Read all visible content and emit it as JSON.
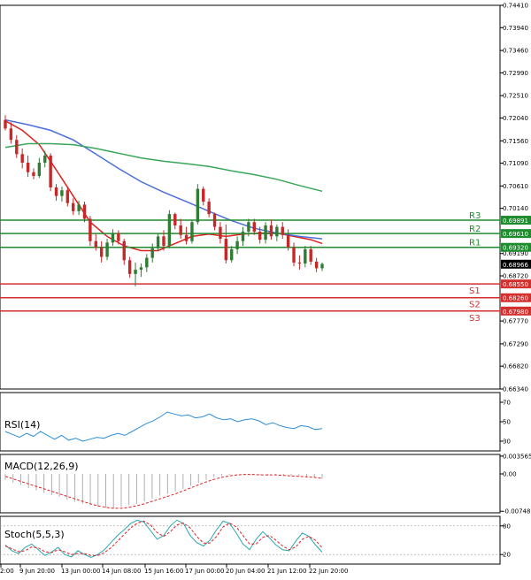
{
  "colors": {
    "background": "#ffffff",
    "frame": "#000000",
    "bull_candle": "#2e7d32",
    "bear_candle": "#c62828",
    "resistance": "#1e8c2e",
    "support": "#d32f2f",
    "ema_fast": "#e02020",
    "ma_mid": "#4a6fdc",
    "ma_slow": "#3aa65a",
    "current_price": "#000000",
    "rsi": "#2c8fd8",
    "macd_hist": "#b0b0b0",
    "macd_signal": "#e02020",
    "stoch_main": "#2aa8b0",
    "stoch_signal": "#e02020"
  },
  "chart_data": [
    {
      "type": "candlestick",
      "title": "",
      "y_range": [
        0.6634,
        0.7441
      ],
      "price_ticks": [
        "0.74410",
        "0.73940",
        "0.73460",
        "0.72990",
        "0.72510",
        "0.72040",
        "0.71560",
        "0.71090",
        "0.70610",
        "0.70140",
        "0.69190",
        "0.68720",
        "0.67770",
        "0.67290",
        "0.66820",
        "0.66340"
      ],
      "time_labels": [
        "2:00",
        "9 Jun 20:00",
        "13 Jun 00:00",
        "14 Jun 08:00",
        "15 Jun 16:00",
        "17 Jun 00:00",
        "20 Jun 04:00",
        "21 Jun 12:00",
        "22 Jun 20:00"
      ],
      "current_price": "0.68966",
      "levels": [
        {
          "name": "R3",
          "value": "0.69891",
          "kind": "resistance"
        },
        {
          "name": "R2",
          "value": "0.69610",
          "kind": "resistance"
        },
        {
          "name": "R1",
          "value": "0.69320",
          "kind": "resistance"
        },
        {
          "name": "S1",
          "value": "0.68550",
          "kind": "support"
        },
        {
          "name": "S2",
          "value": "0.68260",
          "kind": "support"
        },
        {
          "name": "S3",
          "value": "0.67980",
          "kind": "support"
        }
      ],
      "candles": [
        [
          0.72,
          0.721,
          0.7178,
          0.7182
        ],
        [
          0.7182,
          0.7195,
          0.715,
          0.7158
        ],
        [
          0.7158,
          0.7168,
          0.712,
          0.7128
        ],
        [
          0.7128,
          0.714,
          0.7098,
          0.711
        ],
        [
          0.711,
          0.7125,
          0.708,
          0.709
        ],
        [
          0.709,
          0.7098,
          0.7075,
          0.7082
        ],
        [
          0.7082,
          0.712,
          0.7078,
          0.711
        ],
        [
          0.711,
          0.7135,
          0.71,
          0.7125
        ],
        [
          0.7125,
          0.713,
          0.705,
          0.7058
        ],
        [
          0.7058,
          0.7065,
          0.703,
          0.704
        ],
        [
          0.704,
          0.706,
          0.7028,
          0.7052
        ],
        [
          0.7052,
          0.706,
          0.7018,
          0.7025
        ],
        [
          0.7025,
          0.7035,
          0.7,
          0.7008
        ],
        [
          0.7008,
          0.703,
          0.7,
          0.7022
        ],
        [
          0.7022,
          0.7028,
          0.6985,
          0.6992
        ],
        [
          0.6992,
          0.6998,
          0.6935,
          0.6945
        ],
        [
          0.6945,
          0.696,
          0.6925,
          0.6932
        ],
        [
          0.6932,
          0.6945,
          0.69,
          0.6912
        ],
        [
          0.6912,
          0.695,
          0.6905,
          0.6942
        ],
        [
          0.6942,
          0.697,
          0.6935,
          0.6962
        ],
        [
          0.6962,
          0.6968,
          0.6938,
          0.6945
        ],
        [
          0.6945,
          0.695,
          0.6895,
          0.6905
        ],
        [
          0.6905,
          0.6912,
          0.6868,
          0.6876
        ],
        [
          0.6876,
          0.69,
          0.685,
          0.6885
        ],
        [
          0.6885,
          0.6898,
          0.687,
          0.689
        ],
        [
          0.689,
          0.6918,
          0.688,
          0.691
        ],
        [
          0.691,
          0.694,
          0.69,
          0.693
        ],
        [
          0.693,
          0.6962,
          0.6925,
          0.6955
        ],
        [
          0.6955,
          0.6968,
          0.6925,
          0.6935
        ],
        [
          0.6935,
          0.701,
          0.693,
          0.7002
        ],
        [
          0.7002,
          0.7005,
          0.697,
          0.6978
        ],
        [
          0.6978,
          0.6992,
          0.695,
          0.6958
        ],
        [
          0.6958,
          0.6975,
          0.6938,
          0.6945
        ],
        [
          0.6945,
          0.699,
          0.694,
          0.6985
        ],
        [
          0.6985,
          0.7065,
          0.698,
          0.7055
        ],
        [
          0.7055,
          0.706,
          0.702,
          0.7028
        ],
        [
          0.7028,
          0.7035,
          0.6995,
          0.7002
        ],
        [
          0.7002,
          0.7005,
          0.6968,
          0.6975
        ],
        [
          0.6975,
          0.6985,
          0.694,
          0.695
        ],
        [
          0.695,
          0.698,
          0.6898,
          0.6905
        ],
        [
          0.6905,
          0.6935,
          0.69,
          0.6928
        ],
        [
          0.6928,
          0.6955,
          0.6918,
          0.6945
        ],
        [
          0.6945,
          0.6975,
          0.6935,
          0.6965
        ],
        [
          0.6965,
          0.6992,
          0.6955,
          0.6985
        ],
        [
          0.6985,
          0.6992,
          0.6958,
          0.6965
        ],
        [
          0.6965,
          0.6975,
          0.694,
          0.6948
        ],
        [
          0.6948,
          0.6985,
          0.694,
          0.6978
        ],
        [
          0.6978,
          0.699,
          0.6948,
          0.6955
        ],
        [
          0.6955,
          0.698,
          0.6945,
          0.6975
        ],
        [
          0.6975,
          0.6985,
          0.695,
          0.6958
        ],
        [
          0.6958,
          0.697,
          0.6925,
          0.6932
        ],
        [
          0.6932,
          0.6942,
          0.6892,
          0.69
        ],
        [
          0.69,
          0.6915,
          0.6885,
          0.6898
        ],
        [
          0.6898,
          0.6935,
          0.689,
          0.6928
        ],
        [
          0.6928,
          0.6935,
          0.6895,
          0.6902
        ],
        [
          0.6902,
          0.691,
          0.688,
          0.6888
        ],
        [
          0.6888,
          0.69,
          0.6882,
          0.6897
        ]
      ],
      "moving_averages": [
        {
          "points": [
            [
              0,
              0.7198
            ],
            [
              3,
              0.7178
            ],
            [
              6,
              0.7148
            ],
            [
              9,
              0.7095
            ],
            [
              12,
              0.704
            ],
            [
              15,
              0.6985
            ],
            [
              18,
              0.6955
            ],
            [
              21,
              0.6935
            ],
            [
              24,
              0.6925
            ],
            [
              27,
              0.6925
            ],
            [
              30,
              0.694
            ],
            [
              33,
              0.6955
            ],
            [
              36,
              0.696
            ],
            [
              39,
              0.6955
            ],
            [
              42,
              0.696
            ],
            [
              45,
              0.6962
            ],
            [
              48,
              0.6962
            ],
            [
              51,
              0.6955
            ],
            [
              54,
              0.6948
            ],
            [
              56,
              0.694
            ]
          ]
        },
        {
          "points": [
            [
              0,
              0.72
            ],
            [
              4,
              0.719
            ],
            [
              8,
              0.7178
            ],
            [
              12,
              0.7158
            ],
            [
              16,
              0.7128
            ],
            [
              20,
              0.7098
            ],
            [
              24,
              0.707
            ],
            [
              28,
              0.7048
            ],
            [
              32,
              0.7028
            ],
            [
              36,
              0.7008
            ],
            [
              40,
              0.6988
            ],
            [
              44,
              0.6972
            ],
            [
              48,
              0.6962
            ],
            [
              52,
              0.6955
            ],
            [
              56,
              0.695
            ]
          ]
        },
        {
          "points": [
            [
              0,
              0.7142
            ],
            [
              4,
              0.715
            ],
            [
              8,
              0.715
            ],
            [
              12,
              0.7148
            ],
            [
              16,
              0.714
            ],
            [
              20,
              0.713
            ],
            [
              24,
              0.712
            ],
            [
              28,
              0.7113
            ],
            [
              32,
              0.7108
            ],
            [
              36,
              0.7102
            ],
            [
              40,
              0.7093
            ],
            [
              44,
              0.7085
            ],
            [
              48,
              0.7075
            ],
            [
              52,
              0.7062
            ],
            [
              56,
              0.705
            ]
          ]
        }
      ]
    },
    {
      "type": "line",
      "title": "RSI(14)",
      "y_range": [
        20,
        80
      ],
      "ticks": [
        "70",
        "50",
        "30"
      ],
      "series": [
        {
          "values": [
            40,
            37,
            34,
            38,
            35,
            40,
            36,
            32,
            36,
            31,
            33,
            30,
            32,
            34,
            33,
            36,
            38,
            36,
            40,
            44,
            48,
            51,
            55,
            60,
            58,
            56,
            57,
            54,
            55,
            58,
            54,
            52,
            53,
            50,
            52,
            53,
            51,
            47,
            49,
            46,
            44,
            43,
            46,
            45,
            42,
            43
          ]
        }
      ]
    },
    {
      "type": "bar",
      "title": "MACD(12,26,9)",
      "y_range": [
        -0.0078,
        0.0039
      ],
      "ticks": [
        "0.003565",
        "0.00",
        "-0.007482"
      ],
      "series": [
        {
          "values": [
            -0.0012,
            -0.0018,
            -0.0022,
            -0.0028,
            -0.0033,
            -0.0038,
            -0.0042,
            -0.0046,
            -0.0052,
            -0.0056,
            -0.006,
            -0.0063,
            -0.0066,
            -0.0068,
            -0.0069,
            -0.0066,
            -0.0063,
            -0.006,
            -0.0055,
            -0.005,
            -0.0044,
            -0.004,
            -0.0035,
            -0.003,
            -0.0024,
            -0.0018,
            -0.0012,
            -0.0007,
            -0.0004,
            -0.0002,
            -0.0001,
            -0.0001,
            -0.0002,
            -0.0002,
            -0.0003,
            -0.0002,
            -0.0003,
            -0.0004,
            -0.0005,
            -0.0006,
            -0.0008,
            -0.001
          ]
        },
        {
          "values": [
            -0.0005,
            -0.001,
            -0.0015,
            -0.002,
            -0.0025,
            -0.003,
            -0.0035,
            -0.004,
            -0.0045,
            -0.005,
            -0.0055,
            -0.006,
            -0.0064,
            -0.0067,
            -0.0069,
            -0.0069,
            -0.0067,
            -0.0064,
            -0.006,
            -0.0055,
            -0.005,
            -0.0045,
            -0.004,
            -0.0034,
            -0.0028,
            -0.0022,
            -0.0016,
            -0.0011,
            -0.0007,
            -0.0004,
            -0.0002,
            -0.0001,
            -0.0001,
            -0.0002,
            -0.0002,
            -0.0002,
            -0.0003,
            -0.0004,
            -0.0005,
            -0.0006,
            -0.0007,
            -0.0009
          ]
        }
      ]
    },
    {
      "type": "line",
      "title": "Stoch(5,5,3)",
      "y_range": [
        0,
        100
      ],
      "ticks": [
        "80",
        "20"
      ],
      "series": [
        {
          "values": [
            40,
            28,
            22,
            35,
            42,
            30,
            18,
            25,
            35,
            20,
            15,
            28,
            20,
            14,
            20,
            30,
            45,
            60,
            72,
            85,
            92,
            88,
            70,
            52,
            60,
            80,
            92,
            85,
            60,
            45,
            38,
            50,
            72,
            90,
            85,
            65,
            42,
            30,
            52,
            68,
            55,
            40,
            30,
            28,
            48,
            65,
            58,
            40,
            25
          ]
        },
        {
          "values": [
            38,
            32,
            26,
            28,
            36,
            34,
            26,
            24,
            30,
            26,
            20,
            22,
            22,
            18,
            18,
            24,
            34,
            48,
            62,
            76,
            86,
            90,
            82,
            66,
            58,
            68,
            82,
            86,
            76,
            58,
            44,
            44,
            58,
            78,
            86,
            78,
            60,
            42,
            42,
            56,
            60,
            50,
            38,
            30,
            36,
            52,
            58,
            50,
            34
          ]
        }
      ]
    }
  ]
}
